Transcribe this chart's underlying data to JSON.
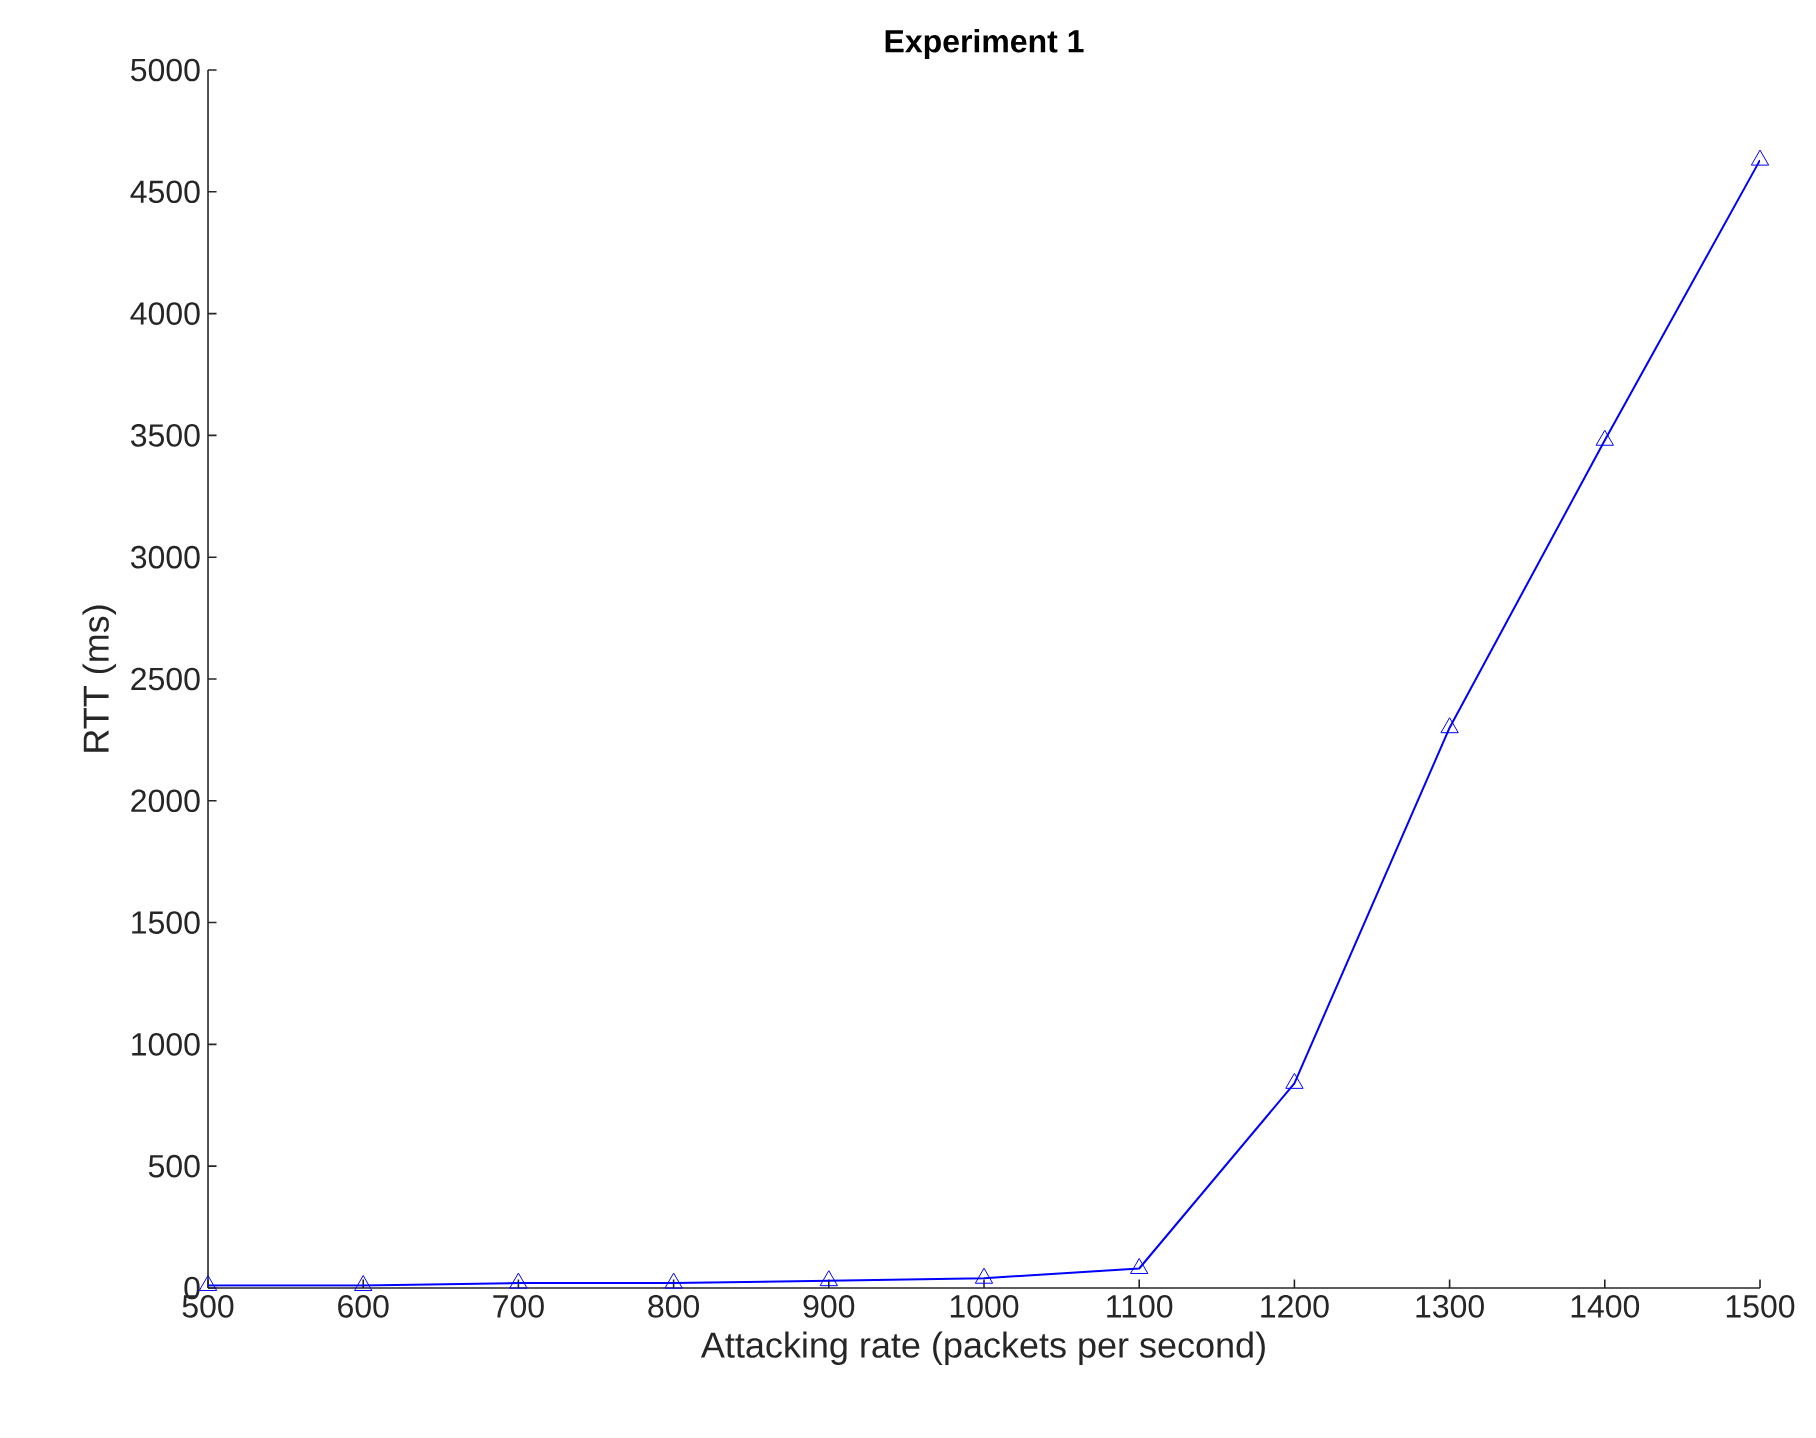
{
  "chart_data": {
    "type": "line",
    "title": "Experiment 1",
    "xlabel": "Attacking rate (packets per second)",
    "ylabel": "RTT (ms)",
    "x": [
      500,
      600,
      700,
      800,
      900,
      1000,
      1100,
      1200,
      1300,
      1400,
      1500
    ],
    "series": [
      {
        "color": "#0000ff",
        "values": [
          10,
          10,
          20,
          20,
          30,
          40,
          80,
          840,
          2300,
          3480,
          4630
        ]
      }
    ],
    "xlim": [
      500,
      1500
    ],
    "xticks": [
      500,
      600,
      700,
      800,
      900,
      1000,
      1100,
      1200,
      1300,
      1400,
      1500
    ],
    "ylim": [
      0,
      5000
    ],
    "yticks": [
      0,
      500,
      1000,
      1500,
      2000,
      2500,
      3000,
      3500,
      4000,
      4500,
      5000
    ],
    "grid": false,
    "marker": "triangle",
    "line_style": "solid"
  }
}
